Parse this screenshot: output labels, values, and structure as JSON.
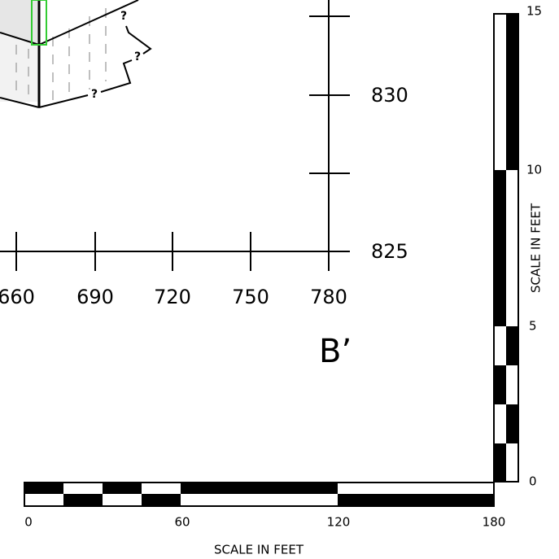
{
  "queries": [
    "?",
    "?",
    "?"
  ],
  "axes": {
    "x_ticks": [
      "660",
      "690",
      "720",
      "750",
      "780"
    ],
    "y_ticks": [
      "830",
      "825"
    ]
  },
  "section_label": "B’",
  "vertical_scale": {
    "ticks": [
      "15",
      "10",
      "5",
      "0"
    ],
    "label": "SCALE IN FEET"
  },
  "horizontal_scale": {
    "ticks": [
      "0",
      "60",
      "120",
      "180"
    ],
    "label": "SCALE IN FEET"
  }
}
